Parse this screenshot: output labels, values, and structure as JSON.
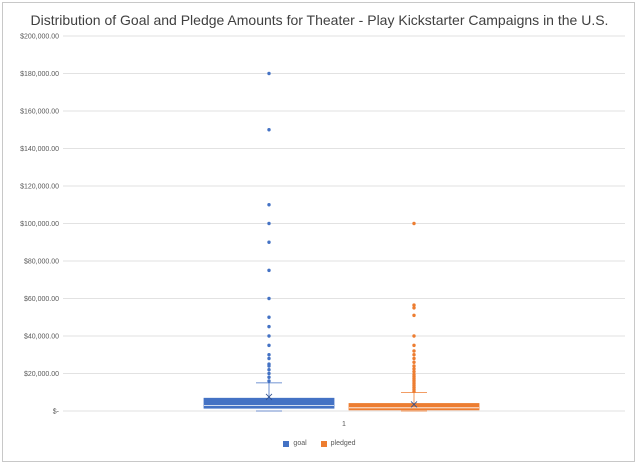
{
  "chart_data": {
    "type": "box",
    "title": "Distribution of Goal and Pledge Amounts for Theater - Play Kickstarter Campaigns in the U.S.",
    "categories": [
      "1"
    ],
    "ylim": [
      0,
      200000
    ],
    "yticks": [
      0,
      20000,
      40000,
      60000,
      80000,
      100000,
      120000,
      140000,
      160000,
      180000,
      200000
    ],
    "ytick_labels": [
      "$-",
      "$20,000.00",
      "$40,000.00",
      "$60,000.00",
      "$80,000.00",
      "$100,000.00",
      "$120,000.00",
      "$140,000.00",
      "$160,000.00",
      "$180,000.00",
      "$200,000.00"
    ],
    "grid": true,
    "legend_position": "bottom",
    "series": [
      {
        "name": "goal",
        "color": "#4472c4",
        "min": 0,
        "q1": 1500,
        "median": 3000,
        "q3": 6800,
        "whisker_high": 15000,
        "mean": 7500,
        "outliers": [
          16000,
          18000,
          20000,
          22000,
          24000,
          25000,
          28000,
          30000,
          35000,
          40000,
          45000,
          50000,
          60000,
          75000,
          90000,
          100000,
          110000,
          150000,
          180000
        ]
      },
      {
        "name": "pledged",
        "color": "#ed7d31",
        "min": 0,
        "q1": 600,
        "median": 1700,
        "q3": 4000,
        "whisker_high": 9800,
        "mean": 3500,
        "outliers": [
          10500,
          11500,
          12500,
          13500,
          14500,
          15500,
          16500,
          17500,
          18500,
          19500,
          21000,
          22500,
          24000,
          26000,
          28000,
          30000,
          32000,
          35000,
          40000,
          51000,
          55000,
          56500,
          100000
        ]
      }
    ]
  }
}
